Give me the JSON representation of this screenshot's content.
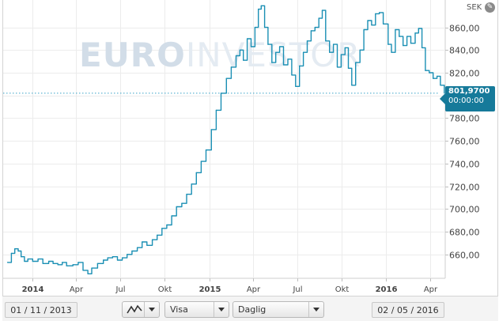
{
  "header": {
    "currency": "SEK",
    "settings_icon": "wrench-icon"
  },
  "watermark": {
    "part1": "EURO",
    "part2": "INVESTOR"
  },
  "current_price": {
    "value": "801,9700",
    "time": "00:00:00"
  },
  "controls": {
    "start_date": "01 / 11 / 2013",
    "end_date": "02 / 05 / 2016",
    "chart_type_icon": "line-chart-icon",
    "show_label": "Visa",
    "interval_label": "Daglig"
  },
  "colors": {
    "line": "#1a8fb4",
    "price_tag": "#167a9a",
    "watermark_light": "#e4ebf2",
    "watermark_dark": "#d2dde8"
  },
  "chart_data": {
    "type": "line",
    "grid": true,
    "ylim": [
      639,
      882
    ],
    "xlim": [
      "2013-11-01",
      "2016-05-02"
    ],
    "y_ticks": [
      "660,00",
      "680,00",
      "700,00",
      "720,00",
      "740,00",
      "760,00",
      "780,00",
      "800,00",
      "820,00",
      "840,00",
      "860,00"
    ],
    "x_ticks": [
      {
        "label": "2014",
        "date": "2014-01-01",
        "bold": true
      },
      {
        "label": "Apr",
        "date": "2014-04-01",
        "bold": false
      },
      {
        "label": "Jul",
        "date": "2014-07-01",
        "bold": false
      },
      {
        "label": "Okt",
        "date": "2014-10-01",
        "bold": false
      },
      {
        "label": "2015",
        "date": "2015-01-01",
        "bold": true
      },
      {
        "label": "Apr",
        "date": "2015-04-01",
        "bold": false
      },
      {
        "label": "Jul",
        "date": "2015-07-01",
        "bold": false
      },
      {
        "label": "Okt",
        "date": "2015-10-01",
        "bold": false
      },
      {
        "label": "2016",
        "date": "2016-01-01",
        "bold": true
      },
      {
        "label": "Apr",
        "date": "2016-04-01",
        "bold": false
      }
    ],
    "reference_line": 802,
    "series": [
      {
        "points": [
          [
            "2013-11-10",
            653
          ],
          [
            "2013-11-18",
            661
          ],
          [
            "2013-11-25",
            665
          ],
          [
            "2013-12-02",
            663
          ],
          [
            "2013-12-08",
            658
          ],
          [
            "2013-12-15",
            654
          ],
          [
            "2013-12-22",
            656
          ],
          [
            "2014-01-01",
            654
          ],
          [
            "2014-01-12",
            656
          ],
          [
            "2014-01-22",
            652
          ],
          [
            "2014-02-03",
            654
          ],
          [
            "2014-02-12",
            652
          ],
          [
            "2014-02-22",
            651
          ],
          [
            "2014-03-03",
            653
          ],
          [
            "2014-03-12",
            650
          ],
          [
            "2014-03-25",
            651
          ],
          [
            "2014-04-05",
            653
          ],
          [
            "2014-04-15",
            646
          ],
          [
            "2014-04-25",
            643
          ],
          [
            "2014-05-03",
            648
          ],
          [
            "2014-05-15",
            652
          ],
          [
            "2014-05-27",
            655
          ],
          [
            "2014-06-05",
            657
          ],
          [
            "2014-06-15",
            658
          ],
          [
            "2014-06-25",
            655
          ],
          [
            "2014-07-05",
            657
          ],
          [
            "2014-07-15",
            660
          ],
          [
            "2014-07-25",
            663
          ],
          [
            "2014-08-05",
            666
          ],
          [
            "2014-08-15",
            671
          ],
          [
            "2014-08-25",
            668
          ],
          [
            "2014-09-05",
            673
          ],
          [
            "2014-09-15",
            677
          ],
          [
            "2014-09-25",
            683
          ],
          [
            "2014-10-05",
            686
          ],
          [
            "2014-10-15",
            694
          ],
          [
            "2014-10-25",
            702
          ],
          [
            "2014-11-05",
            705
          ],
          [
            "2014-11-15",
            713
          ],
          [
            "2014-11-25",
            722
          ],
          [
            "2014-12-05",
            732
          ],
          [
            "2014-12-15",
            742
          ],
          [
            "2014-12-25",
            752
          ],
          [
            "2015-01-05",
            770
          ],
          [
            "2015-01-15",
            787
          ],
          [
            "2015-01-25",
            802
          ],
          [
            "2015-02-05",
            815
          ],
          [
            "2015-02-15",
            825
          ],
          [
            "2015-02-25",
            835
          ],
          [
            "2015-03-05",
            840
          ],
          [
            "2015-03-12",
            831
          ],
          [
            "2015-03-20",
            850
          ],
          [
            "2015-03-28",
            843
          ],
          [
            "2015-04-05",
            860
          ],
          [
            "2015-04-12",
            876
          ],
          [
            "2015-04-18",
            879
          ],
          [
            "2015-04-25",
            860
          ],
          [
            "2015-05-02",
            845
          ],
          [
            "2015-05-10",
            829
          ],
          [
            "2015-05-18",
            838
          ],
          [
            "2015-05-26",
            843
          ],
          [
            "2015-06-03",
            827
          ],
          [
            "2015-06-12",
            832
          ],
          [
            "2015-06-20",
            818
          ],
          [
            "2015-06-28",
            808
          ],
          [
            "2015-07-06",
            826
          ],
          [
            "2015-07-14",
            838
          ],
          [
            "2015-07-22",
            848
          ],
          [
            "2015-07-30",
            857
          ],
          [
            "2015-08-07",
            860
          ],
          [
            "2015-08-15",
            868
          ],
          [
            "2015-08-22",
            875
          ],
          [
            "2015-08-29",
            848
          ],
          [
            "2015-09-06",
            838
          ],
          [
            "2015-09-14",
            845
          ],
          [
            "2015-09-22",
            825
          ],
          [
            "2015-09-30",
            836
          ],
          [
            "2015-10-08",
            842
          ],
          [
            "2015-10-15",
            824
          ],
          [
            "2015-10-22",
            809
          ],
          [
            "2015-10-30",
            829
          ],
          [
            "2015-11-08",
            840
          ],
          [
            "2015-11-16",
            858
          ],
          [
            "2015-11-24",
            866
          ],
          [
            "2015-12-02",
            862
          ],
          [
            "2015-12-10",
            872
          ],
          [
            "2015-12-18",
            873
          ],
          [
            "2015-12-26",
            863
          ],
          [
            "2016-01-05",
            845
          ],
          [
            "2016-01-12",
            838
          ],
          [
            "2016-01-20",
            858
          ],
          [
            "2016-01-28",
            852
          ],
          [
            "2016-02-05",
            844
          ],
          [
            "2016-02-13",
            852
          ],
          [
            "2016-02-21",
            846
          ],
          [
            "2016-03-01",
            855
          ],
          [
            "2016-03-08",
            859
          ],
          [
            "2016-03-15",
            842
          ],
          [
            "2016-03-22",
            822
          ],
          [
            "2016-03-30",
            820
          ],
          [
            "2016-04-07",
            815
          ],
          [
            "2016-04-15",
            817
          ],
          [
            "2016-04-22",
            809
          ],
          [
            "2016-04-30",
            802
          ]
        ]
      }
    ]
  }
}
